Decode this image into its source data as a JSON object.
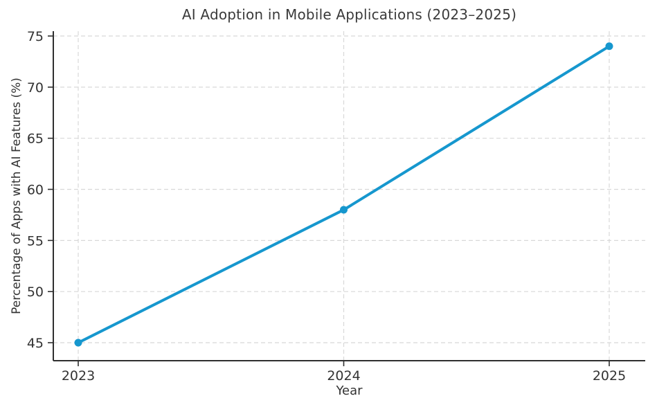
{
  "figure": {
    "background": "#ffffff"
  },
  "chart_data": {
    "type": "line",
    "title": "AI Adoption in Mobile Applications (2023–2025)",
    "xlabel": "Year",
    "ylabel": "Percentage of Apps with AI Features (%)",
    "categories": [
      "2023",
      "2024",
      "2025"
    ],
    "series": [
      {
        "values": [
          45,
          58,
          74
        ]
      }
    ],
    "yticks": [
      45,
      50,
      55,
      60,
      65,
      70,
      75
    ],
    "ylim": [
      43,
      75.5
    ],
    "grid": true,
    "grid_style": "dashed",
    "legend": "none",
    "marker": "circle",
    "colors": {
      "line": "#1697ce",
      "grid": "#d8d8d8",
      "axis": "#2e2e2e",
      "text": "#3a3a3a"
    }
  }
}
